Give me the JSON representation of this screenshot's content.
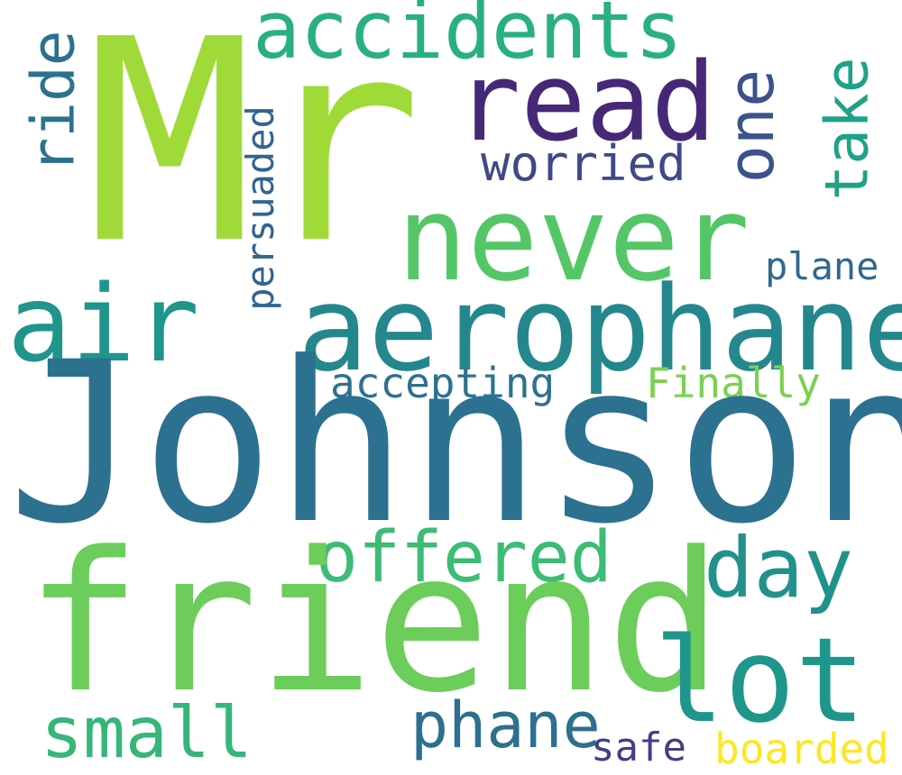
{
  "words": {
    "mr": {
      "text": "Mr",
      "color": "#a0da39"
    },
    "johnson": {
      "text": "Johnson",
      "color": "#2c7190"
    },
    "friend": {
      "text": "friend",
      "color": "#6ccd5a"
    },
    "aerophane": {
      "text": "aerophane",
      "color": "#25878e"
    },
    "never": {
      "text": "never",
      "color": "#55c667"
    },
    "air": {
      "text": "air",
      "color": "#20958b"
    },
    "lot": {
      "text": "lot",
      "color": "#1f968b"
    },
    "read": {
      "text": "read",
      "color": "#472877"
    },
    "accidents": {
      "text": "accidents",
      "color": "#2ab07f"
    },
    "offered": {
      "text": "offered",
      "color": "#3cbc74"
    },
    "day": {
      "text": "day",
      "color": "#21918c"
    },
    "small": {
      "text": "small",
      "color": "#35b779"
    },
    "phane": {
      "text": "phane",
      "color": "#2d6f8e"
    },
    "worried": {
      "text": "worried",
      "color": "#3e4989"
    },
    "plane": {
      "text": "plane",
      "color": "#31688e"
    },
    "accepting": {
      "text": "accepting",
      "color": "#2c728e"
    },
    "finally": {
      "text": "Finally",
      "color": "#7ad151"
    },
    "safe": {
      "text": "safe",
      "color": "#433e85"
    },
    "boarded": {
      "text": "boarded",
      "color": "#fde725"
    },
    "ride": {
      "text": "ride",
      "color": "#2c728e"
    },
    "one": {
      "text": "one",
      "color": "#3b528b"
    },
    "take": {
      "text": "take",
      "color": "#1fa187"
    },
    "persuaded": {
      "text": "persuaded",
      "color": "#32648e"
    }
  }
}
